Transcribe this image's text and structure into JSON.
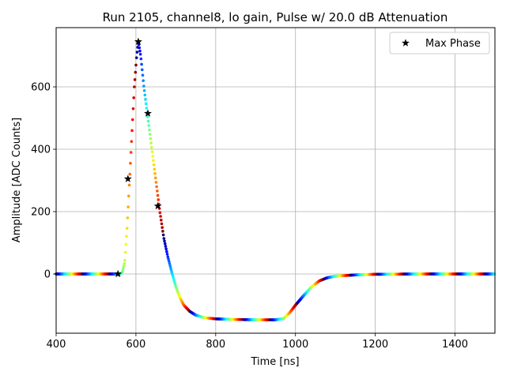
{
  "chart_data": {
    "type": "scatter",
    "title": "Run 2105, channel8, lo gain, Pulse w/ 20.0 dB Attenuation",
    "xlabel": "Time [ns]",
    "ylabel": "Amplitude [ADC Counts]",
    "xlim": [
      400,
      1500
    ],
    "ylim": [
      -190,
      790
    ],
    "xticks": [
      400,
      600,
      800,
      1000,
      1200,
      1400
    ],
    "yticks": [
      0,
      200,
      400,
      600
    ],
    "grid": true,
    "legend_position": "top-right",
    "colormap": "jet",
    "series": [
      {
        "name": "",
        "kind": "pulse",
        "sample_step_ns": 1.4,
        "baseline": 0,
        "points": [
          [
            400,
            0
          ],
          [
            560,
            0
          ],
          [
            566,
            5
          ],
          [
            572,
            40
          ],
          [
            578,
            150
          ],
          [
            584,
            300
          ],
          [
            590,
            450
          ],
          [
            596,
            600
          ],
          [
            602,
            700
          ],
          [
            606,
            745
          ],
          [
            612,
            700
          ],
          [
            620,
            600
          ],
          [
            630,
            500
          ],
          [
            640,
            400
          ],
          [
            650,
            300
          ],
          [
            660,
            200
          ],
          [
            670,
            115
          ],
          [
            680,
            55
          ],
          [
            690,
            5
          ],
          [
            700,
            -40
          ],
          [
            710,
            -75
          ],
          [
            720,
            -100
          ],
          [
            735,
            -120
          ],
          [
            750,
            -132
          ],
          [
            770,
            -140
          ],
          [
            800,
            -144
          ],
          [
            850,
            -146
          ],
          [
            900,
            -147
          ],
          [
            950,
            -147
          ],
          [
            970,
            -143
          ],
          [
            985,
            -125
          ],
          [
            1000,
            -100
          ],
          [
            1020,
            -70
          ],
          [
            1040,
            -42
          ],
          [
            1060,
            -22
          ],
          [
            1080,
            -12
          ],
          [
            1100,
            -7
          ],
          [
            1150,
            -3
          ],
          [
            1200,
            -1
          ],
          [
            1300,
            0
          ],
          [
            1400,
            0
          ],
          [
            1500,
            0
          ]
        ]
      },
      {
        "name": "Max Phase",
        "kind": "markers",
        "marker": "star",
        "color": "#000000",
        "points": [
          [
            555,
            0
          ],
          [
            580,
            305
          ],
          [
            606,
            745
          ],
          [
            630,
            515
          ],
          [
            655,
            218
          ]
        ]
      }
    ]
  }
}
